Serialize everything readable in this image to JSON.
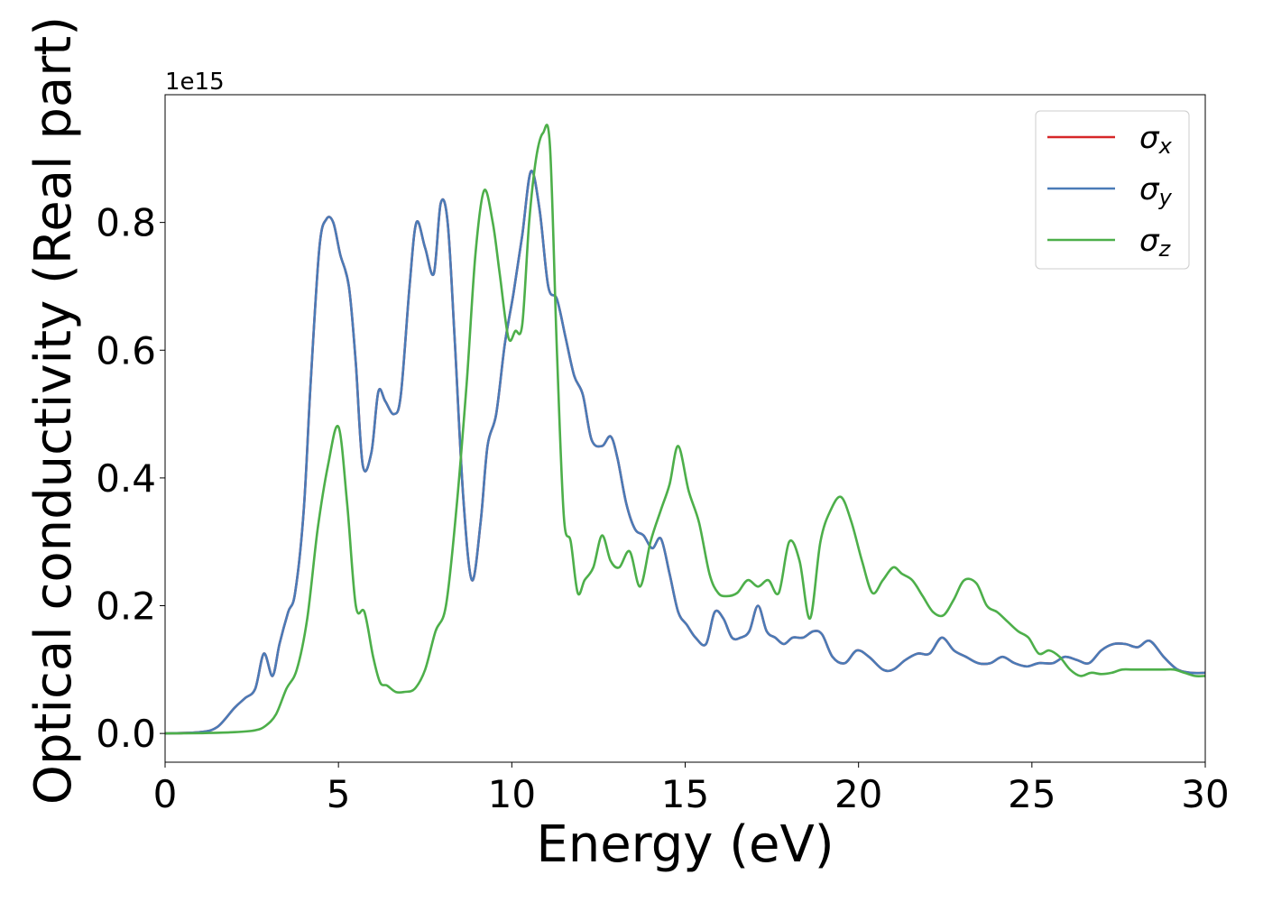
{
  "chart_data": {
    "type": "line",
    "title": "",
    "xlabel": "Energy (eV)",
    "ylabel": "Optical conductivity (Real part)",
    "y_offset_text": "1e15",
    "xlim": [
      0,
      30
    ],
    "ylim": [
      -0.045,
      1.0
    ],
    "x_ticks": [
      0,
      5,
      10,
      15,
      20,
      25,
      30
    ],
    "y_ticks": [
      0.0,
      0.2,
      0.4,
      0.6,
      0.8
    ],
    "x_tick_labels": [
      "0",
      "5",
      "10",
      "15",
      "20",
      "25",
      "30"
    ],
    "y_tick_labels": [
      "0.0",
      "0.2",
      "0.4",
      "0.6",
      "0.8"
    ],
    "grid": false,
    "legend_position": "top-right",
    "series": [
      {
        "name": "σx",
        "legend_symbol": "σ",
        "legend_sub": "x",
        "color": "#d62728",
        "x": [
          0,
          1,
          1.5,
          2,
          2.3,
          2.6,
          2.85,
          3.1,
          3.3,
          3.55,
          3.75,
          4,
          4.2,
          4.45,
          4.65,
          4.85,
          5.05,
          5.3,
          5.5,
          5.7,
          5.95,
          6.15,
          6.35,
          6.6,
          6.8,
          7.05,
          7.25,
          7.5,
          7.75,
          7.95,
          8.15,
          8.35,
          8.6,
          8.85,
          9.1,
          9.3,
          9.55,
          9.8,
          10.05,
          10.3,
          10.55,
          10.8,
          11.05,
          11.3,
          11.55,
          11.8,
          12.05,
          12.3,
          12.6,
          12.85,
          13.05,
          13.3,
          13.55,
          13.8,
          14.05,
          14.3,
          14.55,
          14.8,
          15.05,
          15.3,
          15.6,
          15.85,
          16.1,
          16.35,
          16.6,
          16.85,
          17.1,
          17.35,
          17.6,
          17.85,
          18.1,
          18.4,
          18.7,
          18.95,
          19.25,
          19.6,
          19.95,
          20.3,
          20.7,
          21,
          21.35,
          21.7,
          22.05,
          22.4,
          22.75,
          23.1,
          23.45,
          23.8,
          24.15,
          24.5,
          24.85,
          25.2,
          25.6,
          25.95,
          26.3,
          26.65,
          27,
          27.35,
          27.7,
          28.05,
          28.4,
          28.8,
          29.2,
          29.6,
          30
        ],
        "y": [
          0,
          0.002,
          0.01,
          0.04,
          0.055,
          0.07,
          0.125,
          0.09,
          0.14,
          0.19,
          0.22,
          0.35,
          0.55,
          0.76,
          0.805,
          0.8,
          0.75,
          0.7,
          0.58,
          0.42,
          0.44,
          0.535,
          0.52,
          0.5,
          0.53,
          0.7,
          0.8,
          0.76,
          0.72,
          0.83,
          0.8,
          0.62,
          0.37,
          0.24,
          0.33,
          0.45,
          0.5,
          0.61,
          0.69,
          0.78,
          0.88,
          0.82,
          0.7,
          0.68,
          0.62,
          0.56,
          0.53,
          0.46,
          0.45,
          0.465,
          0.43,
          0.36,
          0.32,
          0.31,
          0.29,
          0.305,
          0.25,
          0.19,
          0.17,
          0.15,
          0.14,
          0.19,
          0.18,
          0.15,
          0.15,
          0.16,
          0.2,
          0.16,
          0.15,
          0.14,
          0.15,
          0.15,
          0.16,
          0.155,
          0.12,
          0.11,
          0.13,
          0.12,
          0.1,
          0.1,
          0.115,
          0.125,
          0.125,
          0.15,
          0.13,
          0.12,
          0.11,
          0.11,
          0.12,
          0.11,
          0.105,
          0.11,
          0.11,
          0.12,
          0.115,
          0.11,
          0.13,
          0.14,
          0.14,
          0.135,
          0.145,
          0.12,
          0.1,
          0.095,
          0.095
        ]
      },
      {
        "name": "σy",
        "legend_symbol": "σ",
        "legend_sub": "y",
        "color": "#4a7bb7",
        "x": [
          0,
          1,
          1.5,
          2,
          2.3,
          2.6,
          2.85,
          3.1,
          3.3,
          3.55,
          3.75,
          4,
          4.2,
          4.45,
          4.65,
          4.85,
          5.05,
          5.3,
          5.5,
          5.7,
          5.95,
          6.15,
          6.35,
          6.6,
          6.8,
          7.05,
          7.25,
          7.5,
          7.75,
          7.95,
          8.15,
          8.35,
          8.6,
          8.85,
          9.1,
          9.3,
          9.55,
          9.8,
          10.05,
          10.3,
          10.55,
          10.8,
          11.05,
          11.3,
          11.55,
          11.8,
          12.05,
          12.3,
          12.6,
          12.85,
          13.05,
          13.3,
          13.55,
          13.8,
          14.05,
          14.3,
          14.55,
          14.8,
          15.05,
          15.3,
          15.6,
          15.85,
          16.1,
          16.35,
          16.6,
          16.85,
          17.1,
          17.35,
          17.6,
          17.85,
          18.1,
          18.4,
          18.7,
          18.95,
          19.25,
          19.6,
          19.95,
          20.3,
          20.7,
          21,
          21.35,
          21.7,
          22.05,
          22.4,
          22.75,
          23.1,
          23.45,
          23.8,
          24.15,
          24.5,
          24.85,
          25.2,
          25.6,
          25.95,
          26.3,
          26.65,
          27,
          27.35,
          27.7,
          28.05,
          28.4,
          28.8,
          29.2,
          29.6,
          30
        ],
        "y": [
          0,
          0.002,
          0.01,
          0.04,
          0.055,
          0.07,
          0.125,
          0.09,
          0.14,
          0.19,
          0.22,
          0.35,
          0.55,
          0.76,
          0.805,
          0.8,
          0.75,
          0.7,
          0.58,
          0.42,
          0.44,
          0.535,
          0.52,
          0.5,
          0.53,
          0.7,
          0.8,
          0.76,
          0.72,
          0.83,
          0.8,
          0.62,
          0.37,
          0.24,
          0.33,
          0.45,
          0.5,
          0.61,
          0.69,
          0.78,
          0.88,
          0.82,
          0.7,
          0.68,
          0.62,
          0.56,
          0.53,
          0.46,
          0.45,
          0.465,
          0.43,
          0.36,
          0.32,
          0.31,
          0.29,
          0.305,
          0.25,
          0.19,
          0.17,
          0.15,
          0.14,
          0.19,
          0.18,
          0.15,
          0.15,
          0.16,
          0.2,
          0.16,
          0.15,
          0.14,
          0.15,
          0.15,
          0.16,
          0.155,
          0.12,
          0.11,
          0.13,
          0.12,
          0.1,
          0.1,
          0.115,
          0.125,
          0.125,
          0.15,
          0.13,
          0.12,
          0.11,
          0.11,
          0.12,
          0.11,
          0.105,
          0.11,
          0.11,
          0.12,
          0.115,
          0.11,
          0.13,
          0.14,
          0.14,
          0.135,
          0.145,
          0.12,
          0.1,
          0.095,
          0.095
        ]
      },
      {
        "name": "σz",
        "legend_symbol": "σ",
        "legend_sub": "z",
        "color": "#4daf4a",
        "x": [
          0,
          1,
          2,
          2.6,
          2.9,
          3.2,
          3.5,
          3.8,
          4.1,
          4.4,
          4.7,
          5.0,
          5.25,
          5.5,
          5.75,
          6.0,
          6.2,
          6.4,
          6.65,
          6.9,
          7.2,
          7.5,
          7.8,
          8.1,
          8.4,
          8.7,
          8.95,
          9.2,
          9.45,
          9.65,
          9.9,
          10.1,
          10.3,
          10.5,
          10.7,
          10.9,
          11.1,
          11.3,
          11.5,
          11.7,
          11.9,
          12.1,
          12.35,
          12.6,
          12.85,
          13.1,
          13.4,
          13.7,
          14.0,
          14.3,
          14.55,
          14.8,
          15.1,
          15.4,
          15.7,
          15.95,
          16.2,
          16.5,
          16.8,
          17.1,
          17.4,
          17.7,
          18.0,
          18.3,
          18.6,
          18.9,
          19.2,
          19.5,
          19.8,
          20.1,
          20.4,
          20.7,
          21.0,
          21.25,
          21.55,
          21.85,
          22.15,
          22.45,
          22.75,
          23.05,
          23.4,
          23.7,
          24.0,
          24.3,
          24.6,
          24.9,
          25.2,
          25.5,
          25.8,
          26.1,
          26.4,
          26.7,
          27.0,
          27.3,
          27.6,
          27.9,
          28.2,
          28.5,
          28.8,
          29.1,
          29.4,
          29.7,
          30
        ],
        "y": [
          0,
          0.0005,
          0.002,
          0.005,
          0.012,
          0.03,
          0.07,
          0.1,
          0.18,
          0.32,
          0.42,
          0.48,
          0.36,
          0.2,
          0.19,
          0.12,
          0.08,
          0.075,
          0.065,
          0.065,
          0.07,
          0.1,
          0.16,
          0.2,
          0.35,
          0.55,
          0.75,
          0.85,
          0.8,
          0.72,
          0.62,
          0.63,
          0.64,
          0.8,
          0.9,
          0.94,
          0.92,
          0.6,
          0.34,
          0.3,
          0.22,
          0.24,
          0.26,
          0.31,
          0.27,
          0.26,
          0.285,
          0.23,
          0.3,
          0.35,
          0.39,
          0.45,
          0.38,
          0.33,
          0.25,
          0.22,
          0.215,
          0.22,
          0.24,
          0.23,
          0.24,
          0.22,
          0.3,
          0.27,
          0.18,
          0.3,
          0.35,
          0.37,
          0.33,
          0.27,
          0.22,
          0.24,
          0.26,
          0.25,
          0.24,
          0.215,
          0.19,
          0.185,
          0.21,
          0.24,
          0.235,
          0.2,
          0.19,
          0.175,
          0.16,
          0.15,
          0.125,
          0.13,
          0.12,
          0.1,
          0.09,
          0.095,
          0.093,
          0.095,
          0.1,
          0.1,
          0.1,
          0.1,
          0.1,
          0.1,
          0.095,
          0.09,
          0.09
        ]
      }
    ]
  }
}
